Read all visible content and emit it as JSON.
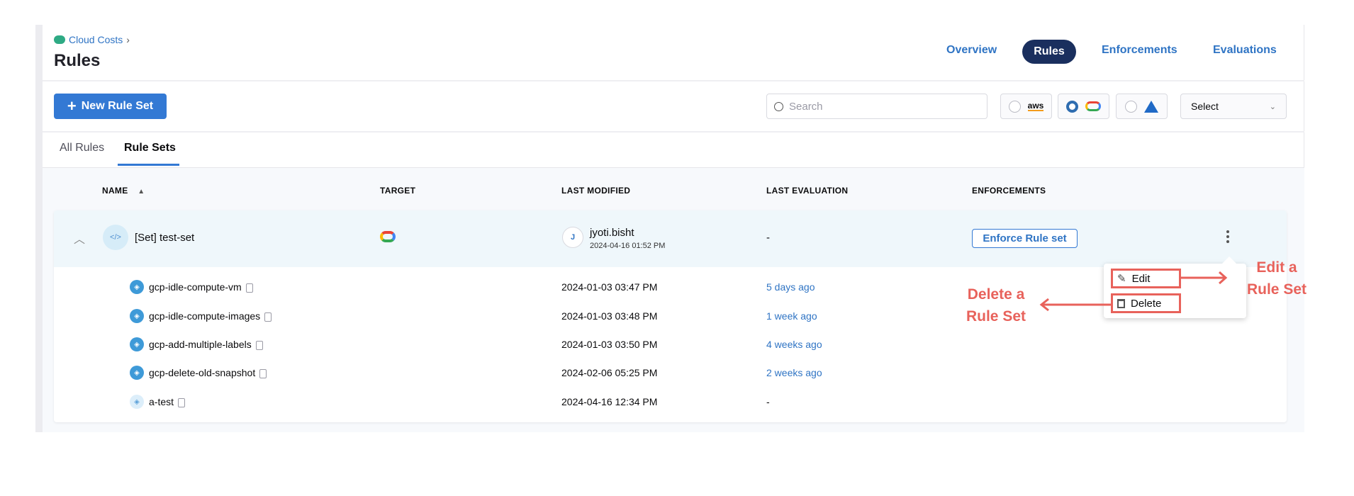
{
  "breadcrumb": {
    "label": "Cloud Costs"
  },
  "page_title": "Rules",
  "nav": {
    "items": [
      "Overview",
      "Rules",
      "Enforcements",
      "Evaluations"
    ],
    "active": "Rules"
  },
  "toolbar": {
    "new_button": "New Rule Set",
    "search_placeholder": "Search",
    "providers": [
      {
        "name": "aws",
        "label": "aws",
        "selected": false
      },
      {
        "name": "gcp",
        "selected": true
      },
      {
        "name": "azure",
        "selected": false
      }
    ],
    "select_label": "Select"
  },
  "tabs": {
    "items": [
      "All Rules",
      "Rule Sets"
    ],
    "active": "Rule Sets"
  },
  "table": {
    "headers": [
      "NAME",
      "TARGET",
      "LAST MODIFIED",
      "LAST EVALUATION",
      "ENFORCEMENTS"
    ],
    "group": {
      "name": "[Set] test-set",
      "target": "gcp",
      "avatar": "J",
      "modified_by": "jyoti.bisht",
      "modified_at": "2024-04-16 01:52 PM",
      "last_evaluation": "-",
      "enforce_label": "Enforce Rule set"
    },
    "rows": [
      {
        "name": "gcp-idle-compute-vm",
        "modified": "2024-01-03 03:47 PM",
        "evaluation": "5 days ago"
      },
      {
        "name": "gcp-idle-compute-images",
        "modified": "2024-01-03 03:48 PM",
        "evaluation": "1 week ago"
      },
      {
        "name": "gcp-add-multiple-labels",
        "modified": "2024-01-03 03:50 PM",
        "evaluation": "4 weeks ago"
      },
      {
        "name": "gcp-delete-old-snapshot",
        "modified": "2024-02-06 05:25 PM",
        "evaluation": "2 weeks ago"
      },
      {
        "name": "a-test",
        "modified": "2024-04-16 12:34 PM",
        "evaluation": "-"
      }
    ]
  },
  "menu": {
    "edit": "Edit",
    "delete": "Delete"
  },
  "annotations": {
    "edit_line1": "Edit a",
    "edit_line2": "Rule Set",
    "delete_line1": "Delete a",
    "delete_line2": "Rule Set",
    "color": "#e8625b"
  }
}
